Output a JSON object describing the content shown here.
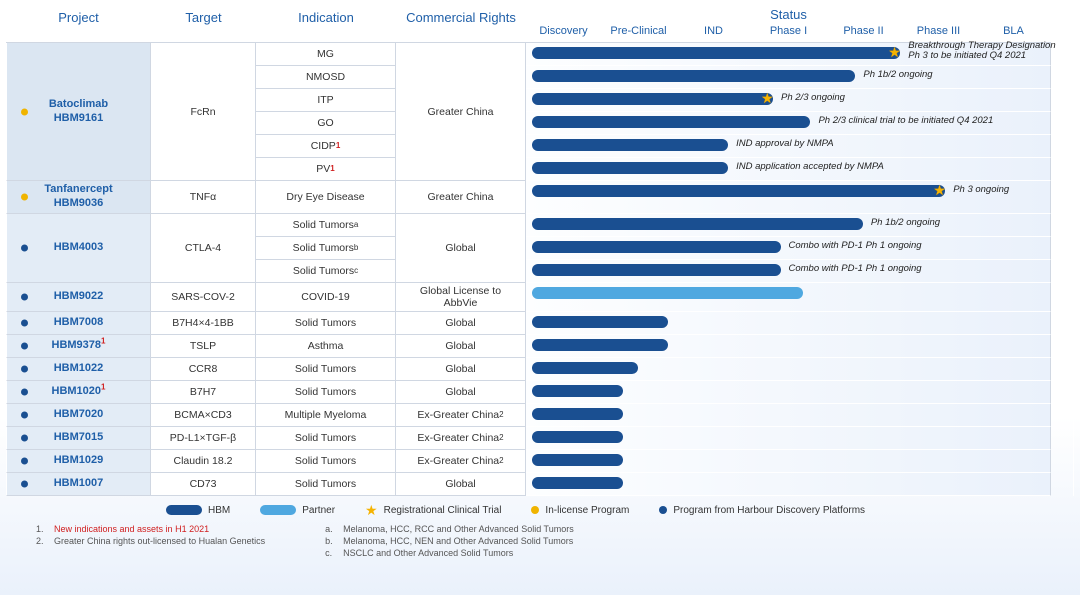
{
  "headers": {
    "project": "Project",
    "target": "Target",
    "indication": "Indication",
    "rights": "Commercial Rights",
    "status": "Status",
    "phases": [
      "Discovery",
      "Pre-Clinical",
      "IND",
      "Phase I",
      "Phase II",
      "Phase III",
      "BLA"
    ]
  },
  "unit_pct": 14.2857,
  "rows": [
    {
      "project_lines": [
        "Batoclimab",
        "HBM9161"
      ],
      "dot": "y",
      "tint": true,
      "target": "FcRn",
      "rights": "Greater China",
      "indications": [
        {
          "label": "MG",
          "bar_end": 5.0,
          "star_at": 5.0,
          "note": "Breakthrough Therapy Designation\nPh 3 to be initiated Q4 2021",
          "two_line": true
        },
        {
          "label": "NMOSD",
          "bar_end": 4.4,
          "note": "Ph 1b/2 ongoing"
        },
        {
          "label": "ITP",
          "bar_end": 3.3,
          "star_at": 3.3,
          "note": "Ph 2/3 ongoing"
        },
        {
          "label": "GO",
          "bar_end": 3.8,
          "note": "Ph 2/3 clinical trial to be initiated Q4 2021"
        },
        {
          "label": "CIDP",
          "sup": "1",
          "sup_red": true,
          "bar_end": 2.7,
          "note": "IND approval by NMPA"
        },
        {
          "label": "PV",
          "sup": "1",
          "sup_red": true,
          "bar_end": 2.7,
          "note": "IND application accepted by NMPA"
        }
      ]
    },
    {
      "project_lines": [
        "Tanfanercept",
        "HBM9036"
      ],
      "dot": "y",
      "tint": true,
      "target": "TNFα",
      "rights": "Greater China",
      "indications": [
        {
          "label": "Dry Eye Disease",
          "bar_end": 5.6,
          "star_at": 5.6,
          "note": "Ph 3 ongoing"
        }
      ]
    },
    {
      "project_lines": [
        "HBM4003"
      ],
      "dot": "b",
      "target": "CTLA-4",
      "rights": "Global",
      "indications": [
        {
          "label": "Solid Tumors",
          "sup": "a",
          "bar_end": 4.5,
          "note": "Ph 1b/2 ongoing"
        },
        {
          "label": "Solid Tumors",
          "sup": "b",
          "bar_end": 3.4,
          "note": "Combo with PD-1 Ph 1 ongoing"
        },
        {
          "label": "Solid Tumors",
          "sup": "c",
          "bar_end": 3.4,
          "note": "Combo with PD-1 Ph 1 ongoing"
        }
      ]
    },
    {
      "project_lines": [
        "HBM9022"
      ],
      "dot": "b",
      "target": "SARS-COV-2",
      "rights": "Global License to AbbVie",
      "rights_two_line": true,
      "indications": [
        {
          "label": "COVID-19",
          "bar_end": 3.7,
          "bar_color": "light"
        }
      ]
    },
    {
      "project_lines": [
        "HBM7008"
      ],
      "dot": "b",
      "target": "B7H4×4-1BB",
      "rights": "Global",
      "indications": [
        {
          "label": "Solid Tumors",
          "bar_end": 1.9
        }
      ]
    },
    {
      "project_lines": [
        "HBM9378"
      ],
      "proj_sup": "1",
      "proj_sup_red": true,
      "dot": "b",
      "target": "TSLP",
      "rights": "Global",
      "indications": [
        {
          "label": "Asthma",
          "bar_end": 1.9
        }
      ]
    },
    {
      "project_lines": [
        "HBM1022"
      ],
      "dot": "b",
      "target": "CCR8",
      "rights": "Global",
      "indications": [
        {
          "label": "Solid Tumors",
          "bar_end": 1.5
        }
      ]
    },
    {
      "project_lines": [
        "HBM1020"
      ],
      "proj_sup": "1",
      "proj_sup_red": true,
      "dot": "b",
      "target": "B7H7",
      "rights": "Global",
      "indications": [
        {
          "label": "Solid Tumors",
          "bar_end": 1.3
        }
      ]
    },
    {
      "project_lines": [
        "HBM7020"
      ],
      "dot": "b",
      "target": "BCMA×CD3",
      "rights": "Ex-Greater China",
      "rights_sup": "2",
      "indications": [
        {
          "label": "Multiple Myeloma",
          "bar_end": 1.3
        }
      ]
    },
    {
      "project_lines": [
        "HBM7015"
      ],
      "dot": "b",
      "target": "PD-L1×TGF-β",
      "rights": "Ex-Greater China",
      "rights_sup": "2",
      "indications": [
        {
          "label": "Solid Tumors",
          "bar_end": 1.3
        }
      ]
    },
    {
      "project_lines": [
        "HBM1029"
      ],
      "dot": "b",
      "target": "Claudin 18.2",
      "rights": "Ex-Greater China",
      "rights_sup": "2",
      "indications": [
        {
          "label": "Solid Tumors",
          "bar_end": 1.3
        }
      ]
    },
    {
      "project_lines": [
        "HBM1007"
      ],
      "dot": "b",
      "target": "CD73",
      "rights": "Global",
      "indications": [
        {
          "label": "Solid Tumors",
          "bar_end": 1.3
        }
      ]
    }
  ],
  "legend": {
    "hbm": "HBM",
    "partner": "Partner",
    "reg": "Registrational Clinical Trial",
    "inlic": "In-license Program",
    "platform": "Program from Harbour  Discovery Platforms"
  },
  "footnotes": {
    "left": [
      {
        "n": "1.",
        "t": "New indications and assets in H1 2021",
        "red": true
      },
      {
        "n": "2.",
        "t": "Greater China rights out-licensed to Hualan Genetics"
      }
    ],
    "right": [
      {
        "n": "a.",
        "t": "Melanoma, HCC, RCC and Other Advanced Solid Tumors"
      },
      {
        "n": "b.",
        "t": "Melanoma, HCC, NEN and Other Advanced Solid Tumors"
      },
      {
        "n": "c.",
        "t": "NSCLC and Other Advanced Solid Tumors"
      }
    ]
  },
  "colors": {
    "bar_dark": "#1a4f91",
    "bar_light": "#4fa8e0",
    "star": "#f5b301",
    "dot_yellow": "#f0b400",
    "dot_blue": "#1a4f91"
  }
}
